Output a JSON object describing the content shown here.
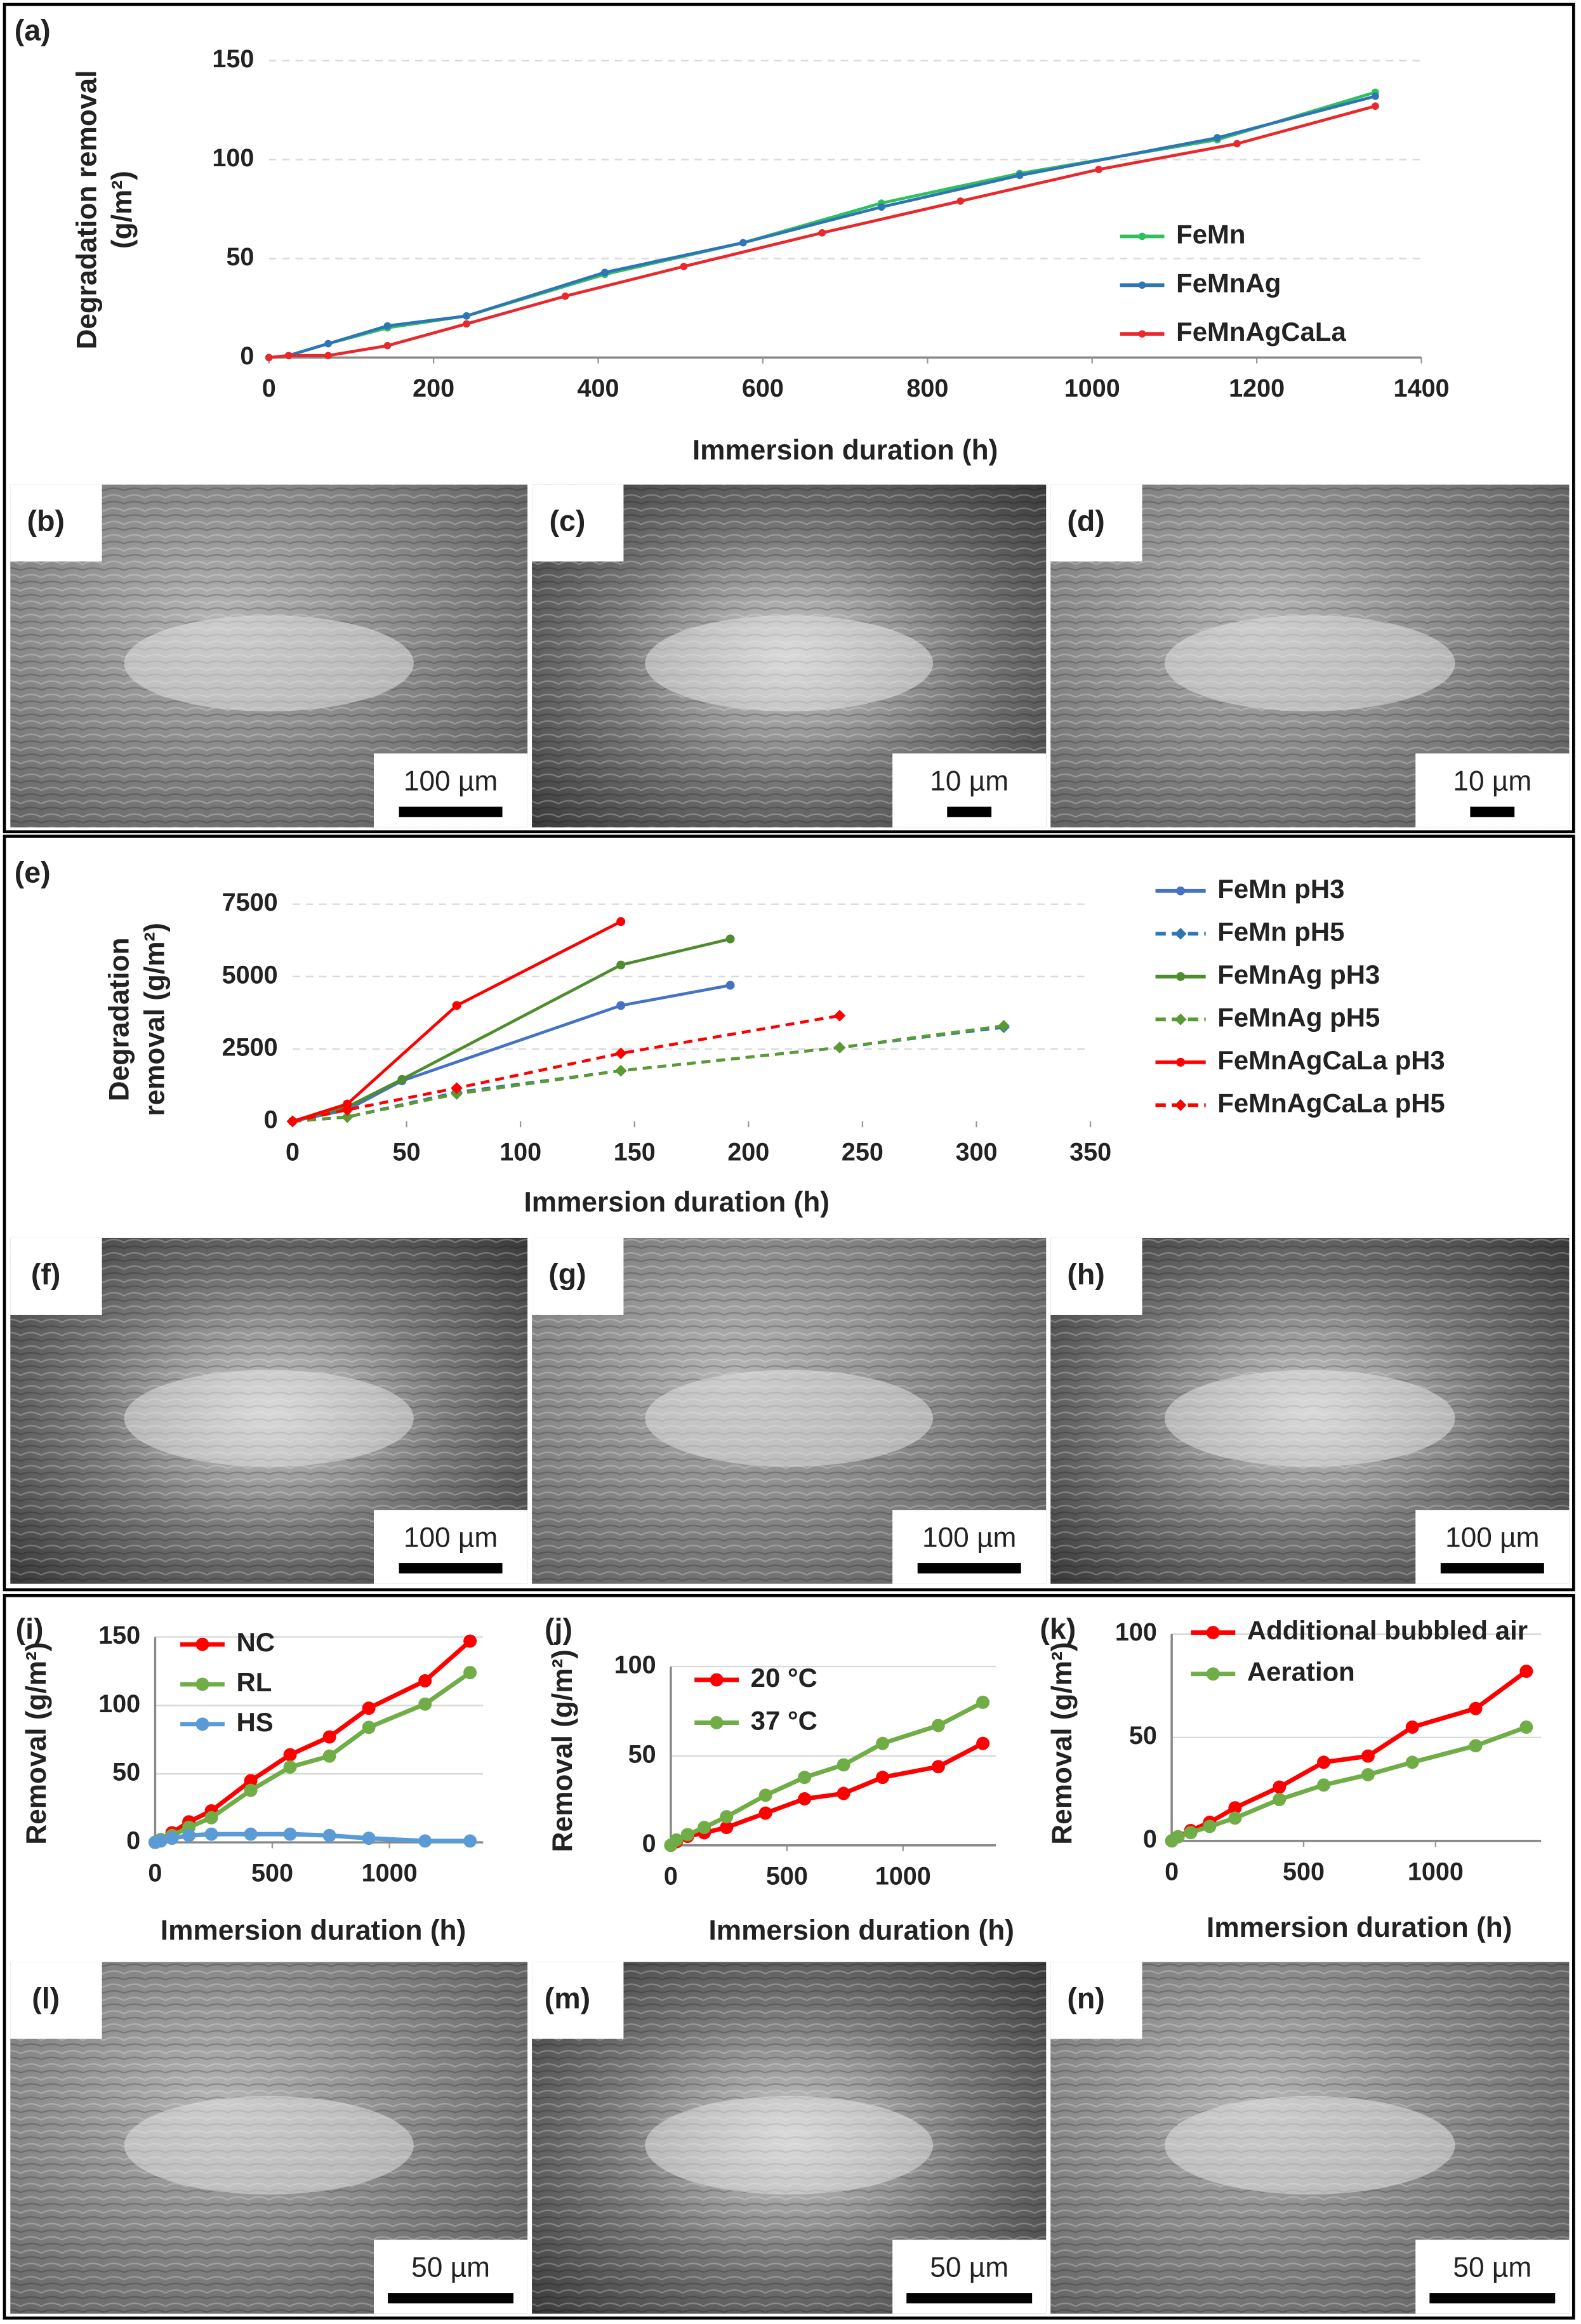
{
  "chart_data": [
    {
      "type": "line",
      "panel_label": "(a)",
      "x_label": "Immersion duration (h)",
      "y_label": [
        "Degradation removal",
        "(g/m²)"
      ],
      "xlim": [
        0,
        1400
      ],
      "ylim": [
        0,
        150
      ],
      "xticks": [
        0,
        200,
        400,
        600,
        800,
        1000,
        1200,
        1400
      ],
      "yticks": [
        0,
        50,
        100,
        150
      ],
      "grid": true,
      "series": [
        {
          "name": "FeMn",
          "color": "#2fbf5f",
          "marker": "circle",
          "x": [
            0,
            24,
            72,
            144,
            240,
            408,
            576,
            744,
            912,
            1152,
            1344
          ],
          "values": [
            0,
            1,
            7,
            15,
            21,
            42,
            58,
            78,
            93,
            110,
            134
          ]
        },
        {
          "name": "FeMnAg",
          "color": "#2e75b6",
          "marker": "circle",
          "x": [
            0,
            24,
            72,
            144,
            240,
            408,
            576,
            744,
            912,
            1152,
            1344
          ],
          "values": [
            0,
            1,
            7,
            16,
            21,
            43,
            58,
            76,
            92,
            111,
            132
          ]
        },
        {
          "name": "FeMnAgCaLa",
          "color": "#e8282b",
          "marker": "circle",
          "x": [
            0,
            24,
            72,
            144,
            240,
            360,
            504,
            672,
            840,
            1008,
            1176,
            1344
          ],
          "values": [
            0,
            1,
            1,
            6,
            17,
            31,
            46,
            63,
            79,
            95,
            108,
            127
          ]
        }
      ]
    },
    {
      "type": "line",
      "panel_label": "(e)",
      "x_label": "Immersion duration (h)",
      "y_label": [
        "Degradation",
        "removal (g/m²)"
      ],
      "xlim": [
        0,
        350
      ],
      "ylim": [
        0,
        7500
      ],
      "xticks": [
        0,
        50,
        100,
        150,
        200,
        250,
        300,
        350
      ],
      "yticks": [
        0,
        2500,
        5000,
        7500
      ],
      "grid": true,
      "series": [
        {
          "name": "FeMn pH3",
          "color": "#4472c4",
          "marker": "circle",
          "line_style": "solid",
          "x": [
            0,
            24,
            48,
            144,
            192
          ],
          "values": [
            0,
            400,
            1400,
            4000,
            4700
          ]
        },
        {
          "name": "FeMn pH5",
          "color": "#2e75b6",
          "marker": "diamond",
          "line_style": "dashed",
          "x": [
            0,
            24,
            72,
            144,
            240,
            312
          ],
          "values": [
            0,
            150,
            1000,
            1750,
            2550,
            3250
          ]
        },
        {
          "name": "FeMnAg pH3",
          "color": "#4e8c2c",
          "marker": "circle",
          "line_style": "solid",
          "x": [
            0,
            24,
            48,
            144,
            192
          ],
          "values": [
            0,
            500,
            1450,
            5400,
            6300
          ]
        },
        {
          "name": "FeMnAg pH5",
          "color": "#5a9a32",
          "marker": "diamond",
          "line_style": "dashed",
          "x": [
            0,
            24,
            72,
            144,
            240,
            312
          ],
          "values": [
            0,
            150,
            950,
            1750,
            2550,
            3300
          ]
        },
        {
          "name": "FeMnAgCaLa pH3",
          "color": "#ff0000",
          "marker": "circle",
          "line_style": "solid",
          "x": [
            0,
            24,
            72,
            144
          ],
          "values": [
            0,
            600,
            4000,
            6900
          ]
        },
        {
          "name": "FeMnAgCaLa pH5",
          "color": "#ff0000",
          "marker": "diamond",
          "line_style": "dashed",
          "x": [
            0,
            24,
            72,
            144,
            240
          ],
          "values": [
            0,
            400,
            1150,
            2350,
            3650
          ]
        }
      ]
    },
    {
      "type": "line",
      "panel_label": "(i)",
      "x_label": "Immersion duration (h)",
      "y_label": [
        "Removal (g/m²)"
      ],
      "xlim": [
        0,
        1400
      ],
      "ylim": [
        0,
        150
      ],
      "xticks": [
        0,
        500,
        1000
      ],
      "yticks": [
        0,
        50,
        100,
        150
      ],
      "grid": true,
      "x": [
        0,
        24,
        72,
        144,
        240,
        408,
        576,
        744,
        912,
        1152,
        1344
      ],
      "series": [
        {
          "name": "NC",
          "color": "#ff0000",
          "marker": "circle",
          "values": [
            0,
            2,
            7,
            15,
            23,
            45,
            64,
            77,
            98,
            118,
            147
          ]
        },
        {
          "name": "RL",
          "color": "#70ad47",
          "marker": "circle",
          "values": [
            0,
            2,
            5,
            11,
            18,
            38,
            55,
            63,
            84,
            101,
            124
          ]
        },
        {
          "name": "HS",
          "color": "#5b9bd5",
          "marker": "circle",
          "values": [
            0,
            1,
            3,
            5,
            6,
            6,
            6,
            5,
            3,
            1,
            1
          ]
        }
      ]
    },
    {
      "type": "line",
      "panel_label": "(j)",
      "x_label": "Immersion duration (h)",
      "y_label": [
        "Removal (g/m²)"
      ],
      "xlim": [
        0,
        1400
      ],
      "ylim": [
        0,
        100
      ],
      "xticks": [
        0,
        500,
        1000
      ],
      "yticks": [
        0,
        50,
        100
      ],
      "grid": true,
      "x": [
        0,
        24,
        72,
        144,
        240,
        408,
        576,
        744,
        912,
        1152,
        1344
      ],
      "series": [
        {
          "name": "20 °C",
          "color": "#ff0000",
          "marker": "circle",
          "values": [
            0,
            2,
            5,
            7,
            10,
            18,
            26,
            29,
            38,
            44,
            57
          ]
        },
        {
          "name": "37 °C",
          "color": "#70ad47",
          "marker": "circle",
          "values": [
            0,
            3,
            6,
            10,
            16,
            28,
            38,
            45,
            57,
            67,
            80
          ]
        }
      ]
    },
    {
      "type": "line",
      "panel_label": "(k)",
      "x_label": "Immersion duration (h)",
      "y_label": [
        "Removal (g/m²)"
      ],
      "xlim": [
        0,
        1400
      ],
      "ylim": [
        0,
        100
      ],
      "xticks": [
        0,
        500,
        1000
      ],
      "yticks": [
        0,
        50,
        100
      ],
      "grid": true,
      "x": [
        0,
        24,
        72,
        144,
        240,
        408,
        576,
        744,
        912,
        1152,
        1344
      ],
      "series": [
        {
          "name": "Additional bubbled air",
          "color": "#ff0000",
          "marker": "circle",
          "values": [
            0,
            2,
            5,
            9,
            16,
            26,
            38,
            41,
            55,
            64,
            82
          ]
        },
        {
          "name": "Aeration",
          "color": "#70ad47",
          "marker": "circle",
          "values": [
            0,
            2,
            4,
            7,
            11,
            20,
            27,
            32,
            38,
            46,
            55
          ]
        }
      ]
    }
  ],
  "images": [
    {
      "label": "(b)",
      "scale_bar": "100 µm"
    },
    {
      "label": "(c)",
      "scale_bar": "10 µm"
    },
    {
      "label": "(d)",
      "scale_bar": "10 µm"
    },
    {
      "label": "(f)",
      "scale_bar": "100 µm"
    },
    {
      "label": "(g)",
      "scale_bar": "100 µm"
    },
    {
      "label": "(h)",
      "scale_bar": "100 µm"
    },
    {
      "label": "(l)",
      "scale_bar": "50 µm"
    },
    {
      "label": "(m)",
      "scale_bar": "50 µm"
    },
    {
      "label": "(n)",
      "scale_bar": "50 µm"
    }
  ]
}
